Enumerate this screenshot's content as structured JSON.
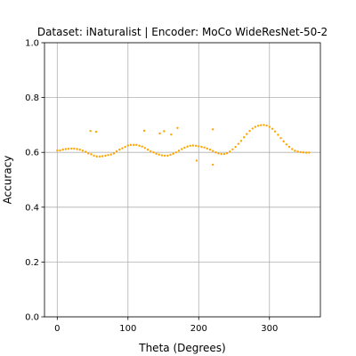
{
  "chart_data": {
    "type": "scatter",
    "title": "Dataset: iNaturalist | Encoder: MoCo WideResNet-50-2",
    "xlabel": "Theta (Degrees)",
    "ylabel": "Accuracy",
    "xlim": [
      -18,
      372
    ],
    "ylim": [
      0.0,
      1.0
    ],
    "xticks": [
      0,
      100,
      200,
      300
    ],
    "yticks": [
      0.0,
      0.2,
      0.4,
      0.6,
      0.8,
      1.0
    ],
    "xtick_labels": [
      "0",
      "100",
      "200",
      "300"
    ],
    "ytick_labels": [
      "0.0",
      "0.2",
      "0.4",
      "0.6",
      "0.8",
      "1.0"
    ],
    "grid": true,
    "marker_color": "#ffa500",
    "series": [
      {
        "x": [
          0,
          4,
          8,
          12,
          16,
          20,
          24,
          28,
          32,
          36,
          40,
          44,
          48,
          52,
          56,
          60,
          64,
          68,
          72,
          76,
          80,
          84,
          88,
          92,
          96,
          100,
          104,
          108,
          112,
          116,
          120,
          124,
          128,
          132,
          136,
          140,
          144,
          148,
          152,
          156,
          160,
          164,
          168,
          172,
          176,
          180,
          184,
          188,
          192,
          196,
          200,
          204,
          208,
          212,
          216,
          220,
          224,
          228,
          232,
          236,
          240,
          244,
          248,
          252,
          256,
          260,
          264,
          268,
          272,
          276,
          280,
          284,
          288,
          292,
          296,
          300,
          304,
          308,
          312,
          316,
          320,
          324,
          328,
          332,
          336,
          340,
          344,
          348,
          352,
          356,
          47,
          55,
          123,
          145,
          151,
          161,
          170,
          220,
          197,
          220
        ],
        "y": [
          0.607,
          0.607,
          0.61,
          0.612,
          0.613,
          0.614,
          0.614,
          0.612,
          0.61,
          0.606,
          0.602,
          0.596,
          0.593,
          0.588,
          0.585,
          0.585,
          0.586,
          0.588,
          0.59,
          0.592,
          0.596,
          0.604,
          0.61,
          0.615,
          0.62,
          0.625,
          0.627,
          0.627,
          0.627,
          0.624,
          0.621,
          0.616,
          0.61,
          0.604,
          0.6,
          0.595,
          0.592,
          0.589,
          0.588,
          0.588,
          0.591,
          0.595,
          0.6,
          0.606,
          0.612,
          0.617,
          0.621,
          0.624,
          0.625,
          0.624,
          0.622,
          0.62,
          0.618,
          0.614,
          0.61,
          0.605,
          0.6,
          0.596,
          0.594,
          0.594,
          0.597,
          0.603,
          0.611,
          0.62,
          0.631,
          0.642,
          0.655,
          0.667,
          0.678,
          0.687,
          0.693,
          0.697,
          0.699,
          0.7,
          0.698,
          0.693,
          0.686,
          0.676,
          0.664,
          0.652,
          0.64,
          0.629,
          0.62,
          0.612,
          0.606,
          0.603,
          0.601,
          0.6,
          0.599,
          0.599,
          0.678,
          0.675,
          0.679,
          0.669,
          0.677,
          0.665,
          0.689,
          0.684,
          0.57,
          0.555
        ]
      }
    ]
  }
}
